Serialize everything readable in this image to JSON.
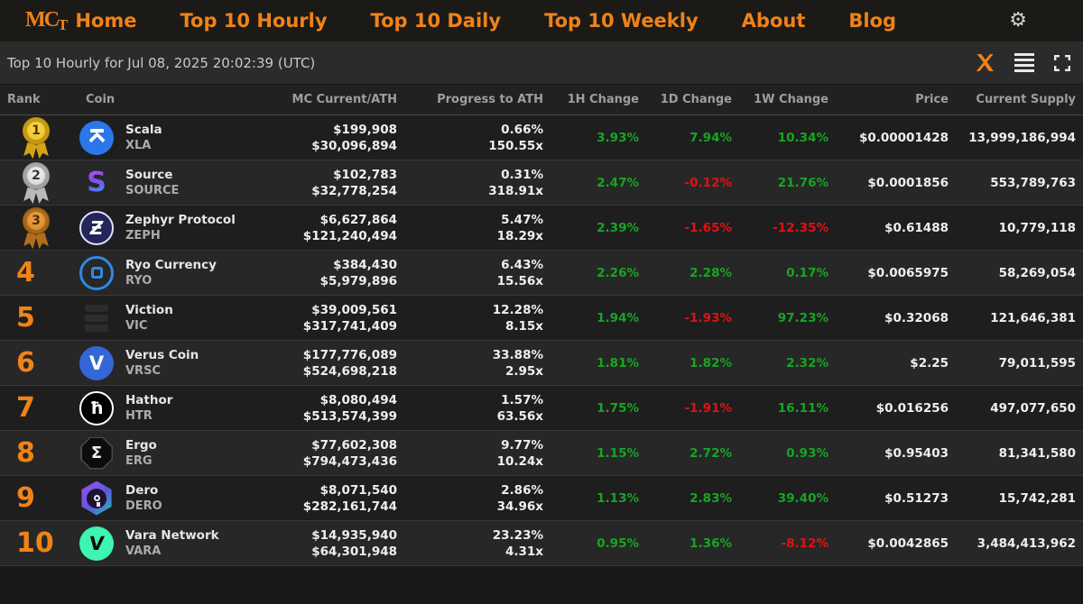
{
  "nav": {
    "logo": "MCT",
    "items": [
      {
        "label": "Home"
      },
      {
        "label": "Top 10 Hourly"
      },
      {
        "label": "Top 10 Daily"
      },
      {
        "label": "Top 10 Weekly"
      },
      {
        "label": "About"
      },
      {
        "label": "Blog"
      }
    ],
    "settings_icon": "gear"
  },
  "toolbar": {
    "title": "Top 10 Hourly for Jul 08, 2025 20:02:39 (UTC)",
    "icons": [
      "x-twitter",
      "list-view",
      "fullscreen"
    ]
  },
  "colors": {
    "accent_orange": "#ef8318",
    "positive_green": "#16a622",
    "negative_red": "#e01212",
    "medal_gold": "#e9b915",
    "medal_silver": "#c9c9c9",
    "medal_bronze": "#cf7f1e"
  },
  "logos": {
    "scala": {
      "glyph": ""
    },
    "source": {
      "glyph": "S"
    },
    "zephyr": {
      "glyph": "Ƶ"
    },
    "ryo": {
      "glyph": ""
    },
    "viction": {
      "glyph": ""
    },
    "verus": {
      "glyph": "V"
    },
    "hathor": {
      "glyph": "ħ"
    },
    "ergo": {
      "glyph": "Σ"
    },
    "dero": {
      "glyph": ""
    },
    "vara": {
      "glyph": "V"
    }
  },
  "table": {
    "columns": [
      "Rank",
      "Coin",
      "MC Current/ATH",
      "Progress to ATH",
      "1H Change",
      "1D Change",
      "1W Change",
      "Price",
      "Current Supply"
    ],
    "rows": [
      {
        "rank": "1",
        "medal": "gold",
        "logo": "scala",
        "name": "Scala",
        "ticker": "XLA",
        "mc_current": "$199,908",
        "mc_ath": "$30,096,894",
        "progress_pct": "0.66%",
        "progress_x": "150.55x",
        "h1": "3.93%",
        "d1": "7.94%",
        "w1": "10.34%",
        "price": "$0.00001428",
        "supply": "13,999,186,994"
      },
      {
        "rank": "2",
        "medal": "silver",
        "logo": "source",
        "name": "Source",
        "ticker": "SOURCE",
        "mc_current": "$102,783",
        "mc_ath": "$32,778,254",
        "progress_pct": "0.31%",
        "progress_x": "318.91x",
        "h1": "2.47%",
        "d1": "-0.12%",
        "w1": "21.76%",
        "price": "$0.0001856",
        "supply": "553,789,763"
      },
      {
        "rank": "3",
        "medal": "bronze",
        "logo": "zephyr",
        "name": "Zephyr Protocol",
        "ticker": "ZEPH",
        "mc_current": "$6,627,864",
        "mc_ath": "$121,240,494",
        "progress_pct": "5.47%",
        "progress_x": "18.29x",
        "h1": "2.39%",
        "d1": "-1.65%",
        "w1": "-12.35%",
        "price": "$0.61488",
        "supply": "10,779,118"
      },
      {
        "rank": "4",
        "medal": null,
        "logo": "ryo",
        "name": "Ryo Currency",
        "ticker": "RYO",
        "mc_current": "$384,430",
        "mc_ath": "$5,979,896",
        "progress_pct": "6.43%",
        "progress_x": "15.56x",
        "h1": "2.26%",
        "d1": "2.28%",
        "w1": "0.17%",
        "price": "$0.0065975",
        "supply": "58,269,054"
      },
      {
        "rank": "5",
        "medal": null,
        "logo": "viction",
        "name": "Viction",
        "ticker": "VIC",
        "mc_current": "$39,009,561",
        "mc_ath": "$317,741,409",
        "progress_pct": "12.28%",
        "progress_x": "8.15x",
        "h1": "1.94%",
        "d1": "-1.93%",
        "w1": "97.23%",
        "price": "$0.32068",
        "supply": "121,646,381"
      },
      {
        "rank": "6",
        "medal": null,
        "logo": "verus",
        "name": "Verus Coin",
        "ticker": "VRSC",
        "mc_current": "$177,776,089",
        "mc_ath": "$524,698,218",
        "progress_pct": "33.88%",
        "progress_x": "2.95x",
        "h1": "1.81%",
        "d1": "1.82%",
        "w1": "2.32%",
        "price": "$2.25",
        "supply": "79,011,595"
      },
      {
        "rank": "7",
        "medal": null,
        "logo": "hathor",
        "name": "Hathor",
        "ticker": "HTR",
        "mc_current": "$8,080,494",
        "mc_ath": "$513,574,399",
        "progress_pct": "1.57%",
        "progress_x": "63.56x",
        "h1": "1.75%",
        "d1": "-1.91%",
        "w1": "16.11%",
        "price": "$0.016256",
        "supply": "497,077,650"
      },
      {
        "rank": "8",
        "medal": null,
        "logo": "ergo",
        "name": "Ergo",
        "ticker": "ERG",
        "mc_current": "$77,602,308",
        "mc_ath": "$794,473,436",
        "progress_pct": "9.77%",
        "progress_x": "10.24x",
        "h1": "1.15%",
        "d1": "2.72%",
        "w1": "0.93%",
        "price": "$0.95403",
        "supply": "81,341,580"
      },
      {
        "rank": "9",
        "medal": null,
        "logo": "dero",
        "name": "Dero",
        "ticker": "DERO",
        "mc_current": "$8,071,540",
        "mc_ath": "$282,161,744",
        "progress_pct": "2.86%",
        "progress_x": "34.96x",
        "h1": "1.13%",
        "d1": "2.83%",
        "w1": "39.40%",
        "price": "$0.51273",
        "supply": "15,742,281"
      },
      {
        "rank": "10",
        "medal": null,
        "logo": "vara",
        "name": "Vara Network",
        "ticker": "VARA",
        "mc_current": "$14,935,940",
        "mc_ath": "$64,301,948",
        "progress_pct": "23.23%",
        "progress_x": "4.31x",
        "h1": "0.95%",
        "d1": "1.36%",
        "w1": "-8.12%",
        "price": "$0.0042865",
        "supply": "3,484,413,962"
      }
    ]
  }
}
